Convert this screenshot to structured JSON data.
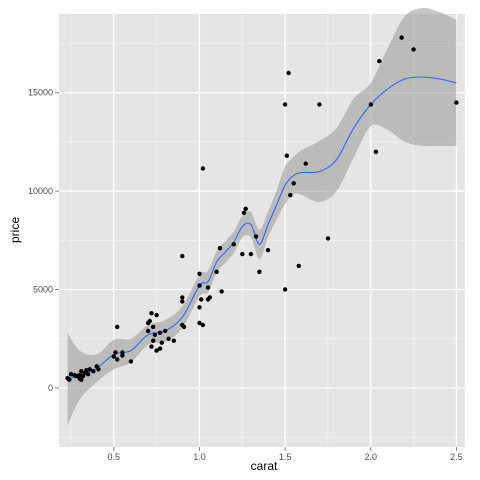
{
  "chart_data": {
    "type": "scatter",
    "title": "",
    "xlabel": "carat",
    "ylabel": "price",
    "xlim": [
      0.18,
      2.55
    ],
    "ylim": [
      -3000,
      19000
    ],
    "x_ticks": [
      0.5,
      1.0,
      1.5,
      2.0,
      2.5
    ],
    "x_tick_labels": [
      "0.5",
      "1.0",
      "1.5",
      "2.0",
      "2.5"
    ],
    "y_ticks": [
      0,
      5000,
      10000,
      15000
    ],
    "y_tick_labels": [
      "0",
      "5000",
      "10000",
      "15000"
    ],
    "grid": true,
    "legend": "none",
    "colors": {
      "panel": "#e5e5e5",
      "grid_major": "#ffffff",
      "points": "#000000",
      "smooth_line": "#3366ff",
      "ribbon": "#999999"
    },
    "points": [
      [
        0.23,
        500
      ],
      [
        0.24,
        420
      ],
      [
        0.25,
        700
      ],
      [
        0.27,
        650
      ],
      [
        0.28,
        600
      ],
      [
        0.3,
        480
      ],
      [
        0.3,
        650
      ],
      [
        0.31,
        850
      ],
      [
        0.31,
        420
      ],
      [
        0.32,
        600
      ],
      [
        0.33,
        750
      ],
      [
        0.34,
        900
      ],
      [
        0.35,
        700
      ],
      [
        0.36,
        950
      ],
      [
        0.38,
        850
      ],
      [
        0.4,
        1100
      ],
      [
        0.41,
        950
      ],
      [
        0.5,
        1600
      ],
      [
        0.51,
        1800
      ],
      [
        0.52,
        1450
      ],
      [
        0.52,
        3100
      ],
      [
        0.55,
        1650
      ],
      [
        0.55,
        1800
      ],
      [
        0.6,
        1350
      ],
      [
        0.7,
        2900
      ],
      [
        0.7,
        3300
      ],
      [
        0.71,
        3400
      ],
      [
        0.72,
        2100
      ],
      [
        0.72,
        3800
      ],
      [
        0.73,
        2400
      ],
      [
        0.73,
        3100
      ],
      [
        0.74,
        2700
      ],
      [
        0.75,
        1900
      ],
      [
        0.75,
        3700
      ],
      [
        0.77,
        2800
      ],
      [
        0.77,
        2000
      ],
      [
        0.78,
        2300
      ],
      [
        0.8,
        2900
      ],
      [
        0.82,
        2500
      ],
      [
        0.85,
        2400
      ],
      [
        0.9,
        3200
      ],
      [
        0.9,
        4400
      ],
      [
        0.9,
        4600
      ],
      [
        0.9,
        6700
      ],
      [
        0.91,
        3100
      ],
      [
        1.0,
        5200
      ],
      [
        1.0,
        5800
      ],
      [
        1.0,
        4100
      ],
      [
        1.0,
        3300
      ],
      [
        1.01,
        4500
      ],
      [
        1.02,
        3200
      ],
      [
        1.02,
        11150
      ],
      [
        1.05,
        5100
      ],
      [
        1.05,
        4500
      ],
      [
        1.06,
        4600
      ],
      [
        1.1,
        5900
      ],
      [
        1.12,
        7100
      ],
      [
        1.13,
        4900
      ],
      [
        1.2,
        7300
      ],
      [
        1.25,
        6800
      ],
      [
        1.26,
        8900
      ],
      [
        1.27,
        9100
      ],
      [
        1.3,
        6800
      ],
      [
        1.33,
        7700
      ],
      [
        1.35,
        5900
      ],
      [
        1.4,
        7000
      ],
      [
        1.5,
        5000
      ],
      [
        1.5,
        14400
      ],
      [
        1.51,
        11800
      ],
      [
        1.52,
        16000
      ],
      [
        1.53,
        9800
      ],
      [
        1.55,
        10400
      ],
      [
        1.58,
        6200
      ],
      [
        1.62,
        11400
      ],
      [
        1.7,
        14400
      ],
      [
        1.75,
        7600
      ],
      [
        2.0,
        14400
      ],
      [
        2.03,
        12000
      ],
      [
        2.05,
        16600
      ],
      [
        2.18,
        17800
      ],
      [
        2.25,
        17200
      ],
      [
        2.5,
        14500
      ]
    ],
    "smooth": {
      "x": [
        0.23,
        0.3,
        0.4,
        0.5,
        0.6,
        0.7,
        0.8,
        0.9,
        1.0,
        1.05,
        1.1,
        1.15,
        1.2,
        1.25,
        1.3,
        1.35,
        1.4,
        1.45,
        1.5,
        1.55,
        1.6,
        1.7,
        1.8,
        1.9,
        2.0,
        2.1,
        2.2,
        2.3,
        2.4,
        2.5
      ],
      "y": [
        450,
        650,
        1000,
        1700,
        1900,
        2700,
        2900,
        3600,
        5200,
        5400,
        6400,
        6900,
        7400,
        8200,
        8300,
        7300,
        8300,
        9300,
        10300,
        10800,
        10950,
        11000,
        11600,
        13200,
        14400,
        15200,
        15700,
        15800,
        15700,
        15500
      ],
      "lower": [
        -1900,
        -600,
        300,
        950,
        1300,
        2200,
        2350,
        3050,
        4650,
        4850,
        5850,
        6350,
        6850,
        7650,
        7650,
        6550,
        7650,
        8550,
        9350,
        9850,
        9800,
        9450,
        10000,
        11700,
        13300,
        13100,
        12500,
        12300,
        12300,
        12300
      ],
      "upper": [
        2800,
        1900,
        1700,
        2450,
        2500,
        3200,
        3450,
        4150,
        5750,
        5950,
        6950,
        7450,
        7950,
        8750,
        8950,
        8050,
        8950,
        10050,
        11250,
        11750,
        12100,
        12550,
        13200,
        14700,
        15500,
        17300,
        18900,
        19300,
        19100,
        18700
      ]
    }
  }
}
